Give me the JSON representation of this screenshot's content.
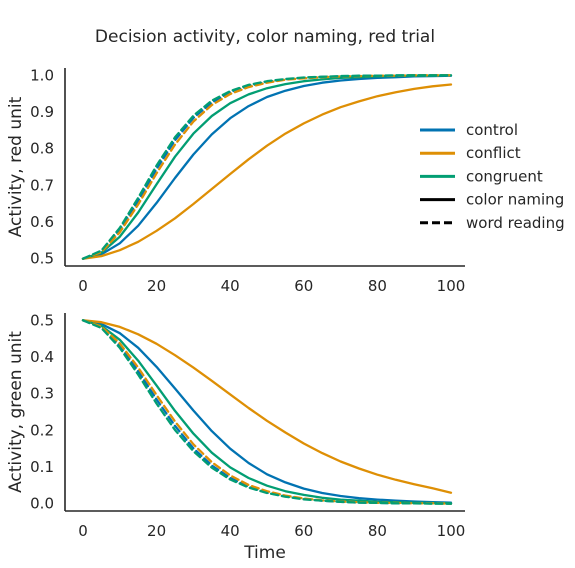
{
  "chart_data": {
    "type": "line",
    "title": "Decision activity, color naming, red trial",
    "xlabel": "Time",
    "xlim": [
      0,
      100
    ],
    "xticks": [
      "0",
      "20",
      "40",
      "60",
      "80",
      "100"
    ],
    "colors": {
      "control": "#0173b2",
      "conflict": "#de8f05",
      "congruent": "#029e73"
    },
    "legend": {
      "placement": "right, between panels",
      "entries": [
        {
          "label": "control",
          "color": "#0173b2",
          "dash": false
        },
        {
          "label": "conflict",
          "color": "#de8f05",
          "dash": false
        },
        {
          "label": "congruent",
          "color": "#029e73",
          "dash": false
        },
        {
          "label": "color naming",
          "color": "#000000",
          "dash": false
        },
        {
          "label": "word reading",
          "color": "#000000",
          "dash": true
        }
      ]
    },
    "panels": [
      {
        "ylabel": "Activity, red unit",
        "ylim": [
          0.48,
          1.02
        ],
        "yticks": [
          "0.5",
          "0.6",
          "0.7",
          "0.8",
          "0.9",
          "1.0"
        ],
        "x": [
          0,
          5,
          10,
          15,
          20,
          25,
          30,
          35,
          40,
          45,
          50,
          55,
          60,
          65,
          70,
          75,
          80,
          85,
          90,
          95,
          100
        ],
        "series": [
          {
            "name": "control",
            "task": "color naming",
            "dash": false,
            "values": [
              0.5,
              0.512,
              0.542,
              0.59,
              0.652,
              0.72,
              0.784,
              0.839,
              0.883,
              0.916,
              0.941,
              0.958,
              0.971,
              0.98,
              0.986,
              0.99,
              0.993,
              0.995,
              0.997,
              0.998,
              0.999
            ]
          },
          {
            "name": "conflict",
            "task": "color naming",
            "dash": false,
            "values": [
              0.5,
              0.507,
              0.523,
              0.546,
              0.576,
              0.61,
              0.649,
              0.69,
              0.731,
              0.771,
              0.808,
              0.841,
              0.869,
              0.893,
              0.913,
              0.929,
              0.943,
              0.954,
              0.963,
              0.97,
              0.975
            ]
          },
          {
            "name": "congruent",
            "task": "color naming",
            "dash": false,
            "values": [
              0.5,
              0.516,
              0.56,
              0.626,
              0.703,
              0.778,
              0.841,
              0.889,
              0.924,
              0.948,
              0.965,
              0.976,
              0.984,
              0.989,
              0.993,
              0.995,
              0.997,
              0.998,
              0.999,
              0.999,
              1.0
            ]
          },
          {
            "name": "control",
            "task": "word reading",
            "dash": true,
            "values": [
              0.5,
              0.52,
              0.578,
              0.658,
              0.745,
              0.823,
              0.884,
              0.926,
              0.954,
              0.971,
              0.982,
              0.989,
              0.993,
              0.996,
              0.997,
              0.998,
              0.999,
              0.999,
              1.0,
              1.0,
              1.0
            ]
          },
          {
            "name": "conflict",
            "task": "word reading",
            "dash": true,
            "values": [
              0.5,
              0.518,
              0.572,
              0.648,
              0.733,
              0.811,
              0.874,
              0.919,
              0.949,
              0.968,
              0.98,
              0.988,
              0.992,
              0.995,
              0.997,
              0.998,
              0.999,
              0.999,
              1.0,
              1.0,
              1.0
            ]
          },
          {
            "name": "congruent",
            "task": "word reading",
            "dash": true,
            "values": [
              0.5,
              0.522,
              0.584,
              0.666,
              0.754,
              0.831,
              0.89,
              0.931,
              0.957,
              0.974,
              0.984,
              0.99,
              0.994,
              0.996,
              0.998,
              0.999,
              0.999,
              1.0,
              1.0,
              1.0,
              1.0
            ]
          }
        ]
      },
      {
        "ylabel": "Activity, green unit",
        "ylim": [
          -0.02,
          0.52
        ],
        "yticks": [
          "0.0",
          "0.1",
          "0.2",
          "0.3",
          "0.4",
          "0.5"
        ],
        "x": [
          0,
          5,
          10,
          15,
          20,
          25,
          30,
          35,
          40,
          45,
          50,
          55,
          60,
          65,
          70,
          75,
          80,
          85,
          90,
          95,
          100
        ],
        "series": [
          {
            "name": "control",
            "task": "color naming",
            "dash": false,
            "values": [
              0.5,
              0.49,
              0.465,
              0.425,
              0.373,
              0.314,
              0.254,
              0.198,
              0.15,
              0.111,
              0.08,
              0.058,
              0.041,
              0.029,
              0.021,
              0.015,
              0.011,
              0.008,
              0.006,
              0.004,
              0.003
            ]
          },
          {
            "name": "conflict",
            "task": "color naming",
            "dash": false,
            "values": [
              0.5,
              0.495,
              0.482,
              0.462,
              0.436,
              0.405,
              0.371,
              0.335,
              0.298,
              0.261,
              0.226,
              0.194,
              0.164,
              0.138,
              0.115,
              0.096,
              0.079,
              0.065,
              0.053,
              0.042,
              0.03
            ]
          },
          {
            "name": "congruent",
            "task": "color naming",
            "dash": false,
            "values": [
              0.5,
              0.485,
              0.447,
              0.39,
              0.322,
              0.253,
              0.191,
              0.139,
              0.099,
              0.07,
              0.049,
              0.034,
              0.024,
              0.016,
              0.011,
              0.008,
              0.005,
              0.004,
              0.003,
              0.002,
              0.001
            ]
          },
          {
            "name": "control",
            "task": "word reading",
            "dash": true,
            "values": [
              0.5,
              0.481,
              0.431,
              0.361,
              0.284,
              0.212,
              0.151,
              0.104,
              0.07,
              0.046,
              0.03,
              0.02,
              0.013,
              0.008,
              0.005,
              0.003,
              0.002,
              0.001,
              0.001,
              0.001,
              0.0
            ]
          },
          {
            "name": "conflict",
            "task": "word reading",
            "dash": true,
            "values": [
              0.5,
              0.483,
              0.437,
              0.371,
              0.296,
              0.224,
              0.162,
              0.113,
              0.077,
              0.051,
              0.034,
              0.022,
              0.014,
              0.009,
              0.006,
              0.004,
              0.002,
              0.002,
              0.001,
              0.001,
              0.0
            ]
          },
          {
            "name": "congruent",
            "task": "word reading",
            "dash": true,
            "values": [
              0.5,
              0.479,
              0.425,
              0.352,
              0.273,
              0.201,
              0.143,
              0.098,
              0.066,
              0.044,
              0.029,
              0.019,
              0.012,
              0.008,
              0.005,
              0.003,
              0.002,
              0.001,
              0.001,
              0.0,
              0.0
            ]
          }
        ]
      }
    ]
  }
}
